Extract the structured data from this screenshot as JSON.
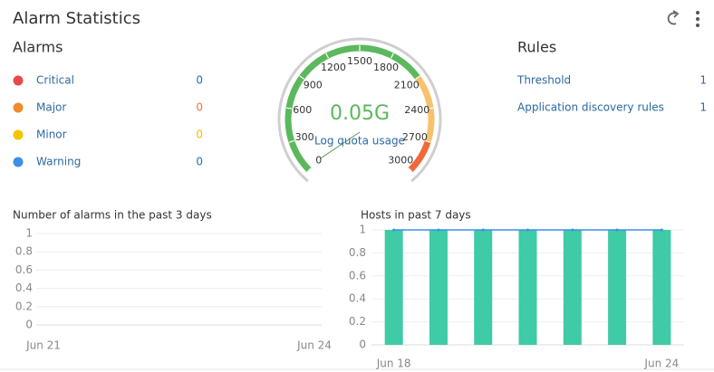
{
  "title": "Alarm Statistics",
  "alarms": {
    "heading": "Alarms",
    "items": [
      {
        "label": "Critical",
        "value": 0,
        "icon_color": "#e84a4a",
        "value_color": "#1f74b8"
      },
      {
        "label": "Major",
        "value": 0,
        "icon_color": "#f08a2c",
        "value_color": "#f0743a"
      },
      {
        "label": "Minor",
        "value": 0,
        "icon_color": "#f5c400",
        "value_color": "#f5b800"
      },
      {
        "label": "Warning",
        "value": 0,
        "icon_color": "#3d8fe8",
        "value_color": "#1f74b8"
      }
    ]
  },
  "rules": {
    "heading": "Rules",
    "items": [
      {
        "label": "Threshold",
        "value": 1
      },
      {
        "label": "Application discovery rules",
        "value": 1
      }
    ]
  },
  "gauge": {
    "value": 0.05,
    "value_label": "0.05G",
    "caption": "Log quota usage",
    "range": [
      0,
      3000
    ],
    "ticks": [
      0,
      300,
      600,
      900,
      1200,
      1500,
      1800,
      2100,
      2400,
      2700,
      3000
    ],
    "bands": [
      {
        "to": 2100,
        "color": "#5cb85c"
      },
      {
        "to": 2700,
        "color": "#f7c26b"
      },
      {
        "to": 3000,
        "color": "#f0693a"
      }
    ]
  },
  "chart_data": [
    {
      "type": "line",
      "title": "Number of alarms in the past 3 days",
      "categories": [
        "Jun 21",
        null,
        null,
        "Jun 24"
      ],
      "ylim": [
        0,
        1
      ],
      "yticks": [
        0,
        0.2,
        0.4,
        0.6,
        0.8,
        1
      ],
      "grid": true
    },
    {
      "type": "bar",
      "title": "Hosts in past 7 days",
      "categories": [
        "Jun 18",
        null,
        null,
        null,
        null,
        null,
        "Jun 24"
      ],
      "series": [
        {
          "color": "#3ecba5",
          "values": [
            1,
            1,
            1,
            1,
            1,
            1,
            1
          ]
        },
        {
          "color": "#3d8fe8",
          "values": [
            1,
            1,
            1,
            1,
            1,
            1,
            1
          ],
          "kind": "line"
        }
      ],
      "ylim": [
        0,
        1
      ],
      "yticks": [
        0,
        0.2,
        0.4,
        0.6,
        0.8,
        1
      ],
      "grid": true
    }
  ]
}
